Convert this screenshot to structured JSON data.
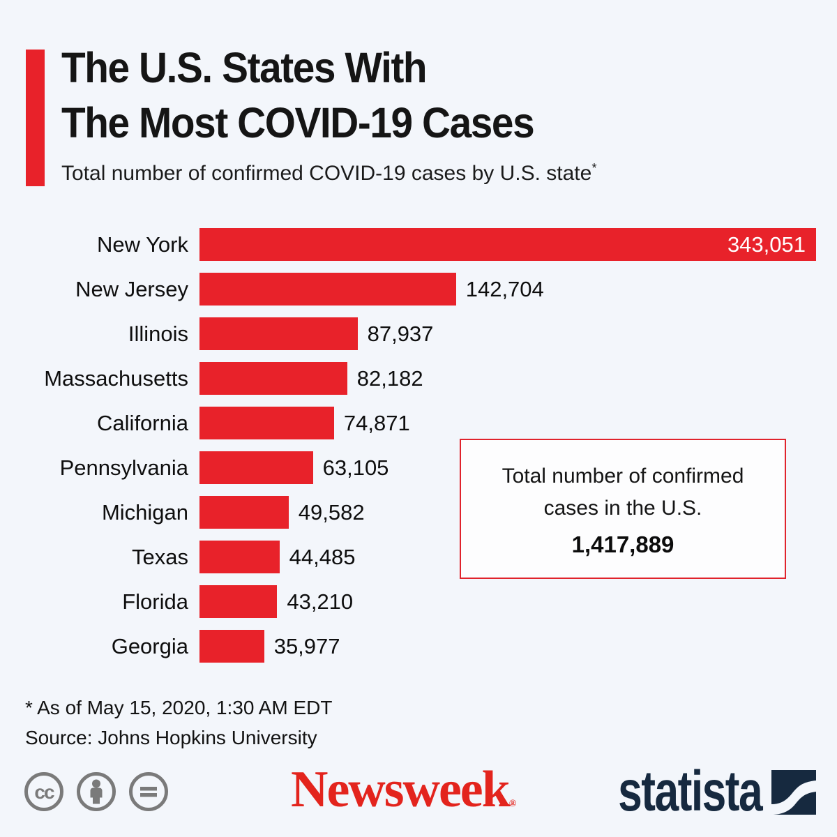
{
  "colors": {
    "background": "#f3f6fb",
    "bar_red": "#e8222a",
    "box_border_red": "#e0232c",
    "newsweek_red": "#e3241d",
    "statista_navy": "#16293f",
    "cc_gray": "#7a7a7a"
  },
  "header": {
    "title_line1": "The U.S. States With",
    "title_line2": "The Most COVID-19 Cases",
    "subtitle": "Total number of confirmed COVID-19 cases by U.S. state",
    "subtitle_asterisk": "*"
  },
  "chart_data": {
    "type": "bar",
    "orientation": "horizontal",
    "title": "The U.S. States With The Most COVID-19 Cases",
    "categories": [
      "New York",
      "New Jersey",
      "Illinois",
      "Massachusetts",
      "California",
      "Pennsylvania",
      "Michigan",
      "Texas",
      "Florida",
      "Georgia"
    ],
    "values": [
      343051,
      142704,
      87937,
      82182,
      74871,
      63105,
      49582,
      44485,
      43210,
      35977
    ],
    "value_labels": [
      "343,051",
      "142,704",
      "87,937",
      "82,182",
      "74,871",
      "63,105",
      "49,582",
      "44,485",
      "43,210",
      "35,977"
    ],
    "xlim": [
      0,
      343051
    ],
    "grid": false,
    "legend": false,
    "bar_color": "#e8222a",
    "value_label_inside_threshold": 0.6
  },
  "total_box": {
    "line1": "Total number of confirmed",
    "line2": "cases in the U.S.",
    "value": "1,417,889"
  },
  "footnotes": {
    "asterisk_note": "* As of May 15, 2020, 1:30 AM EDT",
    "source": "Source: Johns Hopkins University"
  },
  "footer": {
    "newsweek_wordmark": "Newsweek",
    "registered_mark": "®",
    "statista_wordmark": "statista",
    "license_icons": [
      "creative-commons",
      "attribution",
      "no-derivatives"
    ]
  }
}
